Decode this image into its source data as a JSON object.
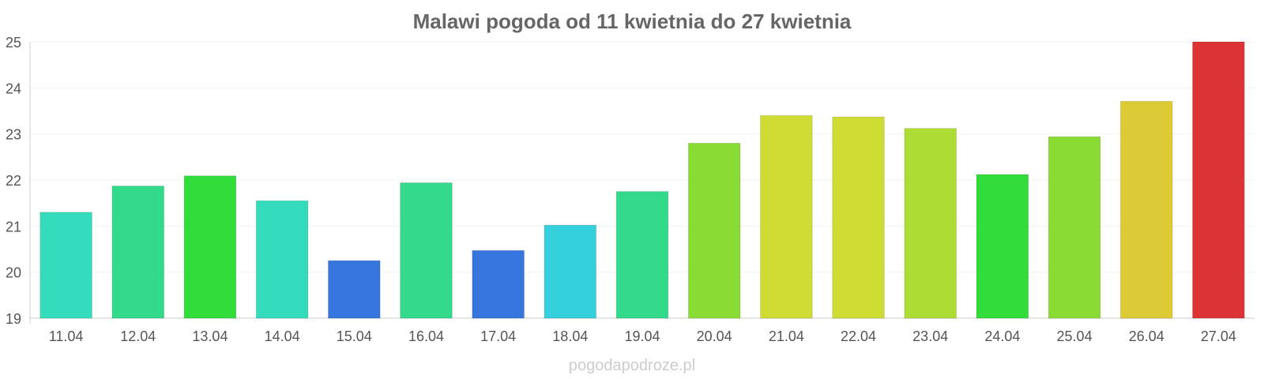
{
  "chart_data": {
    "type": "bar",
    "title": "Malawi pogoda od 11 kwietnia do 27 kwietnia",
    "xlabel": "",
    "ylabel": "",
    "ylim": [
      19,
      25
    ],
    "yticks": [
      "19",
      "20",
      "21",
      "22",
      "23",
      "24",
      "25"
    ],
    "categories": [
      "11.04",
      "12.04",
      "13.04",
      "14.04",
      "15.04",
      "16.04",
      "17.04",
      "18.04",
      "19.04",
      "20.04",
      "21.04",
      "22.04",
      "23.04",
      "24.04",
      "25.04",
      "26.04",
      "27.04"
    ],
    "values": [
      21.3,
      21.87,
      22.09,
      21.55,
      20.25,
      21.94,
      20.47,
      21.02,
      21.75,
      22.8,
      23.4,
      23.37,
      23.12,
      22.12,
      22.94,
      23.71,
      25.0
    ],
    "bar_colors": [
      "#34dcbb",
      "#34da8c",
      "#32dc3a",
      "#34dcbb",
      "#3575dc",
      "#34da8c",
      "#3575dc",
      "#34d0dc",
      "#34da8c",
      "#8adc34",
      "#cfdc34",
      "#cfdc34",
      "#addc34",
      "#32dc3a",
      "#8adc34",
      "#dccb34",
      "#dc3434"
    ],
    "grid": true,
    "legend": "none"
  },
  "watermark": "pogodapodroze.pl"
}
